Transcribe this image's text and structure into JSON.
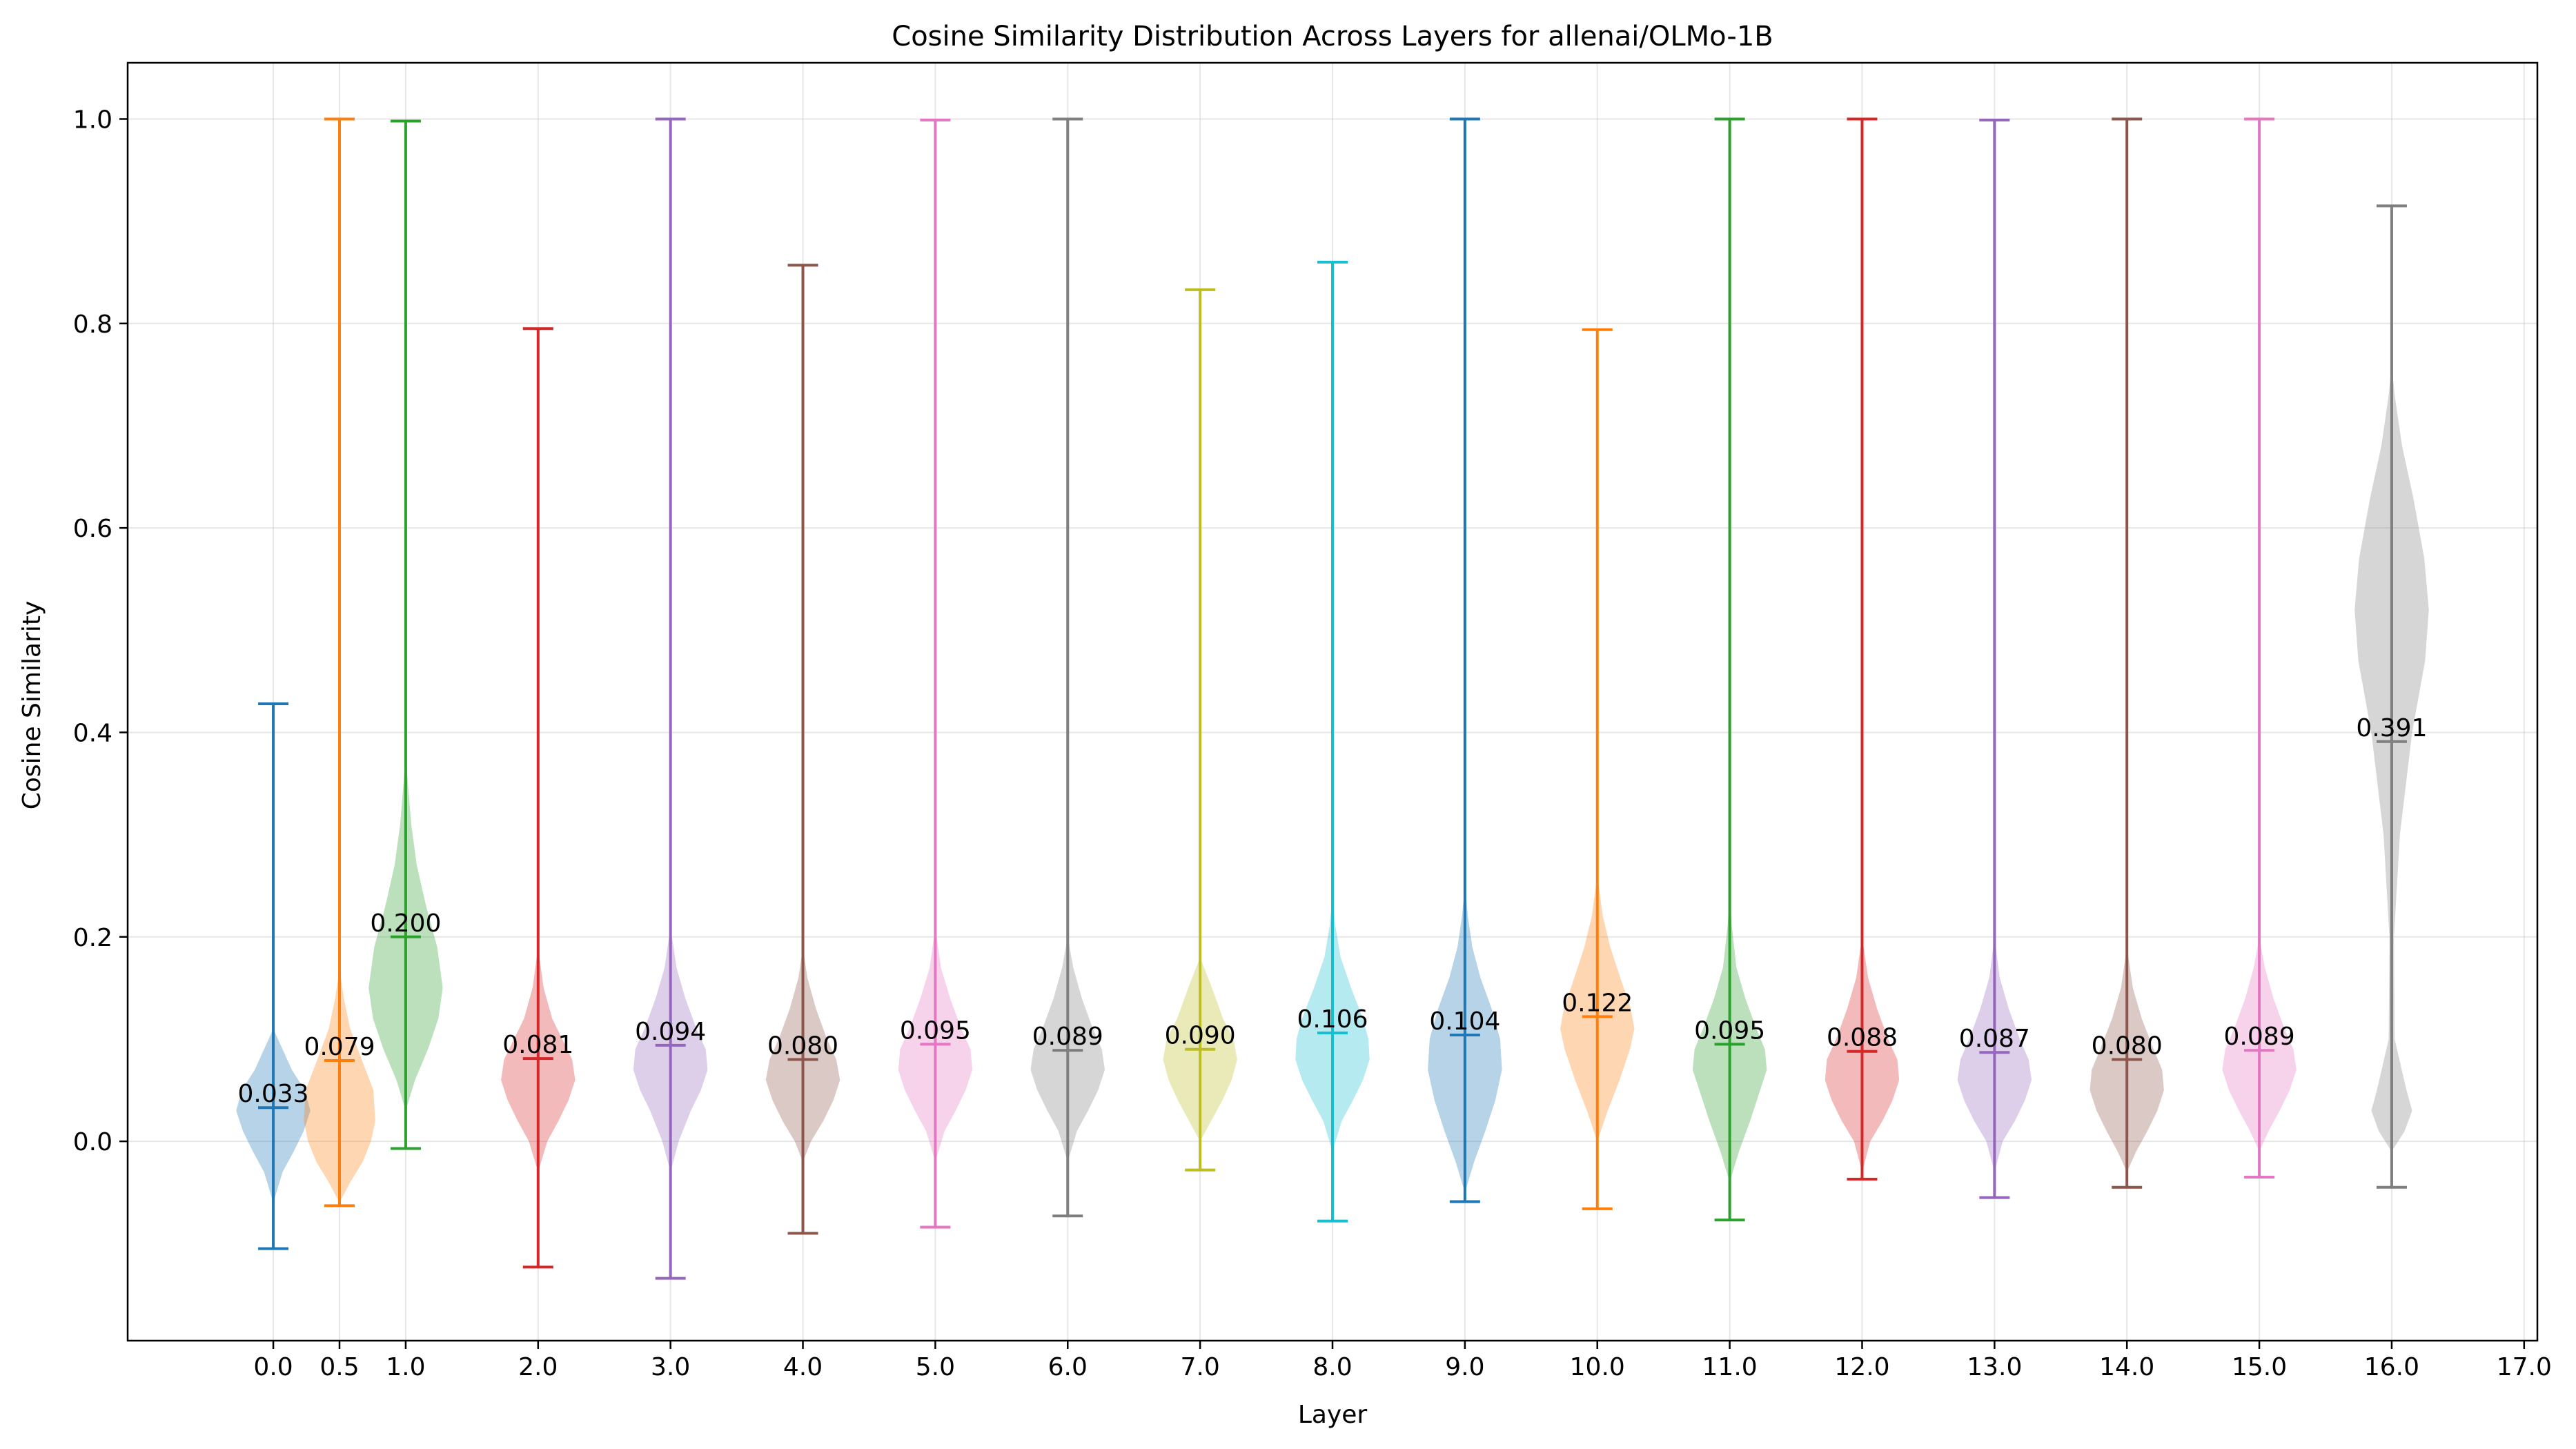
{
  "chart_data": {
    "type": "violin",
    "title": "Cosine Similarity Distribution Across Layers for allenai/OLMo-1B",
    "xlabel": "Layer",
    "ylabel": "Cosine Similarity",
    "xlim": [
      -1.1,
      17.1
    ],
    "ylim": [
      -0.195,
      1.055
    ],
    "x_ticks": [
      0.0,
      0.5,
      1.0,
      2.0,
      3.0,
      4.0,
      5.0,
      6.0,
      7.0,
      8.0,
      9.0,
      10.0,
      11.0,
      12.0,
      13.0,
      14.0,
      15.0,
      16.0,
      17.0
    ],
    "x_tick_labels": [
      "0.0",
      "0.5",
      "1.0",
      "2.0",
      "3.0",
      "4.0",
      "5.0",
      "6.0",
      "7.0",
      "8.0",
      "9.0",
      "10.0",
      "11.0",
      "12.0",
      "13.0",
      "14.0",
      "15.0",
      "16.0",
      "17.0"
    ],
    "y_ticks": [
      0.0,
      0.2,
      0.4,
      0.6,
      0.8,
      1.0
    ],
    "y_tick_labels": [
      "0.0",
      "0.2",
      "0.4",
      "0.6",
      "0.8",
      "1.0"
    ],
    "grid": true,
    "legend": "none",
    "series": [
      {
        "x": 0.0,
        "min": -0.105,
        "max": 0.428,
        "median": 0.033,
        "label": "0.033",
        "color": "#1f77b4",
        "halfwidth": 0.28,
        "density": [
          [
            -0.06,
            0
          ],
          [
            -0.03,
            0.25
          ],
          [
            -0.01,
            0.55
          ],
          [
            0.01,
            0.82
          ],
          [
            0.03,
            1.0
          ],
          [
            0.05,
            0.85
          ],
          [
            0.07,
            0.5
          ],
          [
            0.09,
            0.25
          ],
          [
            0.11,
            0
          ]
        ]
      },
      {
        "x": 0.5,
        "min": -0.063,
        "max": 1.0,
        "median": 0.079,
        "label": "0.079",
        "color": "#ff7f0e",
        "halfwidth": 0.27,
        "density": [
          [
            -0.06,
            0
          ],
          [
            -0.04,
            0.3
          ],
          [
            -0.02,
            0.65
          ],
          [
            0.0,
            0.88
          ],
          [
            0.02,
            1.0
          ],
          [
            0.05,
            0.95
          ],
          [
            0.08,
            0.62
          ],
          [
            0.11,
            0.3
          ],
          [
            0.14,
            0.12
          ],
          [
            0.17,
            0
          ]
        ]
      },
      {
        "x": 1.0,
        "min": -0.007,
        "max": 0.998,
        "median": 0.2,
        "label": "0.200",
        "color": "#2ca02c",
        "halfwidth": 0.28,
        "density": [
          [
            0.03,
            0
          ],
          [
            0.06,
            0.25
          ],
          [
            0.09,
            0.6
          ],
          [
            0.12,
            0.88
          ],
          [
            0.15,
            1.0
          ],
          [
            0.19,
            0.85
          ],
          [
            0.23,
            0.55
          ],
          [
            0.27,
            0.3
          ],
          [
            0.31,
            0.15
          ],
          [
            0.35,
            0.06
          ],
          [
            0.38,
            0
          ]
        ]
      },
      {
        "x": 2.0,
        "min": -0.123,
        "max": 0.795,
        "median": 0.081,
        "label": "0.081",
        "color": "#d62728",
        "halfwidth": 0.28,
        "density": [
          [
            -0.03,
            0
          ],
          [
            0.0,
            0.25
          ],
          [
            0.02,
            0.55
          ],
          [
            0.04,
            0.82
          ],
          [
            0.06,
            1.0
          ],
          [
            0.08,
            0.92
          ],
          [
            0.1,
            0.65
          ],
          [
            0.12,
            0.38
          ],
          [
            0.15,
            0.15
          ],
          [
            0.19,
            0
          ]
        ]
      },
      {
        "x": 3.0,
        "min": -0.134,
        "max": 1.0,
        "median": 0.094,
        "label": "0.094",
        "color": "#9467bd",
        "halfwidth": 0.28,
        "density": [
          [
            -0.03,
            0
          ],
          [
            0.0,
            0.22
          ],
          [
            0.03,
            0.55
          ],
          [
            0.05,
            0.82
          ],
          [
            0.07,
            1.0
          ],
          [
            0.09,
            0.95
          ],
          [
            0.11,
            0.7
          ],
          [
            0.14,
            0.4
          ],
          [
            0.17,
            0.16
          ],
          [
            0.21,
            0
          ]
        ]
      },
      {
        "x": 4.0,
        "min": -0.09,
        "max": 0.857,
        "median": 0.08,
        "label": "0.080",
        "color": "#8c564b",
        "halfwidth": 0.28,
        "density": [
          [
            -0.02,
            0
          ],
          [
            0.0,
            0.22
          ],
          [
            0.02,
            0.55
          ],
          [
            0.04,
            0.82
          ],
          [
            0.06,
            1.0
          ],
          [
            0.08,
            0.9
          ],
          [
            0.1,
            0.65
          ],
          [
            0.13,
            0.35
          ],
          [
            0.16,
            0.12
          ],
          [
            0.19,
            0
          ]
        ]
      },
      {
        "x": 5.0,
        "min": -0.084,
        "max": 0.999,
        "median": 0.095,
        "label": "0.095",
        "color": "#e377c2",
        "halfwidth": 0.28,
        "density": [
          [
            -0.02,
            0
          ],
          [
            0.01,
            0.25
          ],
          [
            0.03,
            0.55
          ],
          [
            0.05,
            0.82
          ],
          [
            0.07,
            1.0
          ],
          [
            0.09,
            0.95
          ],
          [
            0.11,
            0.7
          ],
          [
            0.14,
            0.4
          ],
          [
            0.17,
            0.15
          ],
          [
            0.21,
            0
          ]
        ]
      },
      {
        "x": 6.0,
        "min": -0.073,
        "max": 1.0,
        "median": 0.089,
        "label": "0.089",
        "color": "#7f7f7f",
        "halfwidth": 0.28,
        "density": [
          [
            -0.02,
            0
          ],
          [
            0.01,
            0.25
          ],
          [
            0.03,
            0.55
          ],
          [
            0.05,
            0.82
          ],
          [
            0.07,
            1.0
          ],
          [
            0.09,
            0.92
          ],
          [
            0.11,
            0.68
          ],
          [
            0.14,
            0.38
          ],
          [
            0.17,
            0.15
          ],
          [
            0.2,
            0
          ]
        ]
      },
      {
        "x": 7.0,
        "min": -0.028,
        "max": 0.833,
        "median": 0.09,
        "label": "0.090",
        "color": "#bcbd22",
        "halfwidth": 0.28,
        "density": [
          [
            0.0,
            0
          ],
          [
            0.02,
            0.3
          ],
          [
            0.04,
            0.6
          ],
          [
            0.06,
            0.85
          ],
          [
            0.08,
            1.0
          ],
          [
            0.1,
            0.9
          ],
          [
            0.12,
            0.62
          ],
          [
            0.15,
            0.32
          ],
          [
            0.18,
            0
          ]
        ]
      },
      {
        "x": 8.0,
        "min": -0.078,
        "max": 0.86,
        "median": 0.106,
        "label": "0.106",
        "color": "#17becf",
        "halfwidth": 0.28,
        "density": [
          [
            -0.01,
            0
          ],
          [
            0.02,
            0.25
          ],
          [
            0.04,
            0.55
          ],
          [
            0.06,
            0.82
          ],
          [
            0.08,
            1.0
          ],
          [
            0.1,
            0.97
          ],
          [
            0.12,
            0.82
          ],
          [
            0.15,
            0.5
          ],
          [
            0.18,
            0.22
          ],
          [
            0.21,
            0.08
          ],
          [
            0.24,
            0
          ]
        ]
      },
      {
        "x": 9.0,
        "min": -0.059,
        "max": 1.0,
        "median": 0.104,
        "label": "0.104",
        "color": "#1f77b4",
        "halfwidth": 0.28,
        "density": [
          [
            -0.05,
            0
          ],
          [
            -0.02,
            0.25
          ],
          [
            0.01,
            0.55
          ],
          [
            0.04,
            0.82
          ],
          [
            0.07,
            1.0
          ],
          [
            0.1,
            0.95
          ],
          [
            0.13,
            0.72
          ],
          [
            0.16,
            0.42
          ],
          [
            0.19,
            0.2
          ],
          [
            0.22,
            0.08
          ],
          [
            0.25,
            0
          ]
        ]
      },
      {
        "x": 10.0,
        "min": -0.066,
        "max": 0.794,
        "median": 0.122,
        "label": "0.122",
        "color": "#ff7f0e",
        "halfwidth": 0.28,
        "density": [
          [
            0.0,
            0
          ],
          [
            0.03,
            0.28
          ],
          [
            0.06,
            0.6
          ],
          [
            0.09,
            0.88
          ],
          [
            0.11,
            1.0
          ],
          [
            0.13,
            0.9
          ],
          [
            0.16,
            0.62
          ],
          [
            0.19,
            0.35
          ],
          [
            0.22,
            0.15
          ],
          [
            0.26,
            0
          ]
        ]
      },
      {
        "x": 11.0,
        "min": -0.077,
        "max": 1.0,
        "median": 0.095,
        "label": "0.095",
        "color": "#2ca02c",
        "halfwidth": 0.28,
        "density": [
          [
            -0.04,
            0
          ],
          [
            -0.01,
            0.25
          ],
          [
            0.02,
            0.55
          ],
          [
            0.05,
            0.82
          ],
          [
            0.07,
            1.0
          ],
          [
            0.09,
            0.95
          ],
          [
            0.11,
            0.72
          ],
          [
            0.14,
            0.42
          ],
          [
            0.17,
            0.18
          ],
          [
            0.21,
            0.06
          ],
          [
            0.24,
            0
          ]
        ]
      },
      {
        "x": 12.0,
        "min": -0.037,
        "max": 1.0,
        "median": 0.088,
        "label": "0.088",
        "color": "#d62728",
        "halfwidth": 0.28,
        "density": [
          [
            -0.03,
            0
          ],
          [
            0.0,
            0.22
          ],
          [
            0.02,
            0.55
          ],
          [
            0.04,
            0.82
          ],
          [
            0.06,
            1.0
          ],
          [
            0.08,
            0.95
          ],
          [
            0.1,
            0.7
          ],
          [
            0.13,
            0.4
          ],
          [
            0.16,
            0.16
          ],
          [
            0.2,
            0
          ]
        ]
      },
      {
        "x": 13.0,
        "min": -0.055,
        "max": 0.999,
        "median": 0.087,
        "label": "0.087",
        "color": "#9467bd",
        "halfwidth": 0.28,
        "density": [
          [
            -0.03,
            0
          ],
          [
            0.0,
            0.22
          ],
          [
            0.02,
            0.55
          ],
          [
            0.04,
            0.82
          ],
          [
            0.06,
            1.0
          ],
          [
            0.08,
            0.92
          ],
          [
            0.1,
            0.68
          ],
          [
            0.13,
            0.38
          ],
          [
            0.16,
            0.14
          ],
          [
            0.2,
            0
          ]
        ]
      },
      {
        "x": 14.0,
        "min": -0.045,
        "max": 1.0,
        "median": 0.08,
        "label": "0.080",
        "color": "#8c564b",
        "halfwidth": 0.28,
        "density": [
          [
            -0.03,
            0
          ],
          [
            -0.01,
            0.25
          ],
          [
            0.01,
            0.55
          ],
          [
            0.03,
            0.82
          ],
          [
            0.05,
            1.0
          ],
          [
            0.07,
            0.95
          ],
          [
            0.09,
            0.72
          ],
          [
            0.12,
            0.4
          ],
          [
            0.15,
            0.16
          ],
          [
            0.19,
            0
          ]
        ]
      },
      {
        "x": 15.0,
        "min": -0.035,
        "max": 1.0,
        "median": 0.089,
        "label": "0.089",
        "color": "#e377c2",
        "halfwidth": 0.28,
        "density": [
          [
            -0.01,
            0
          ],
          [
            0.01,
            0.25
          ],
          [
            0.03,
            0.55
          ],
          [
            0.05,
            0.82
          ],
          [
            0.07,
            1.0
          ],
          [
            0.09,
            0.92
          ],
          [
            0.11,
            0.68
          ],
          [
            0.14,
            0.38
          ],
          [
            0.17,
            0.15
          ],
          [
            0.2,
            0
          ]
        ]
      },
      {
        "x": 16.0,
        "min": -0.045,
        "max": 0.915,
        "median": 0.391,
        "label": "0.391",
        "color": "#7f7f7f",
        "halfwidth": 0.28,
        "density": [
          [
            -0.01,
            0
          ],
          [
            0.01,
            0.35
          ],
          [
            0.03,
            0.55
          ],
          [
            0.05,
            0.4
          ],
          [
            0.1,
            0.08
          ],
          [
            0.2,
            0.06
          ],
          [
            0.3,
            0.22
          ],
          [
            0.4,
            0.55
          ],
          [
            0.47,
            0.9
          ],
          [
            0.52,
            1.0
          ],
          [
            0.57,
            0.88
          ],
          [
            0.63,
            0.58
          ],
          [
            0.68,
            0.28
          ],
          [
            0.73,
            0.08
          ],
          [
            0.76,
            0
          ]
        ]
      }
    ]
  }
}
